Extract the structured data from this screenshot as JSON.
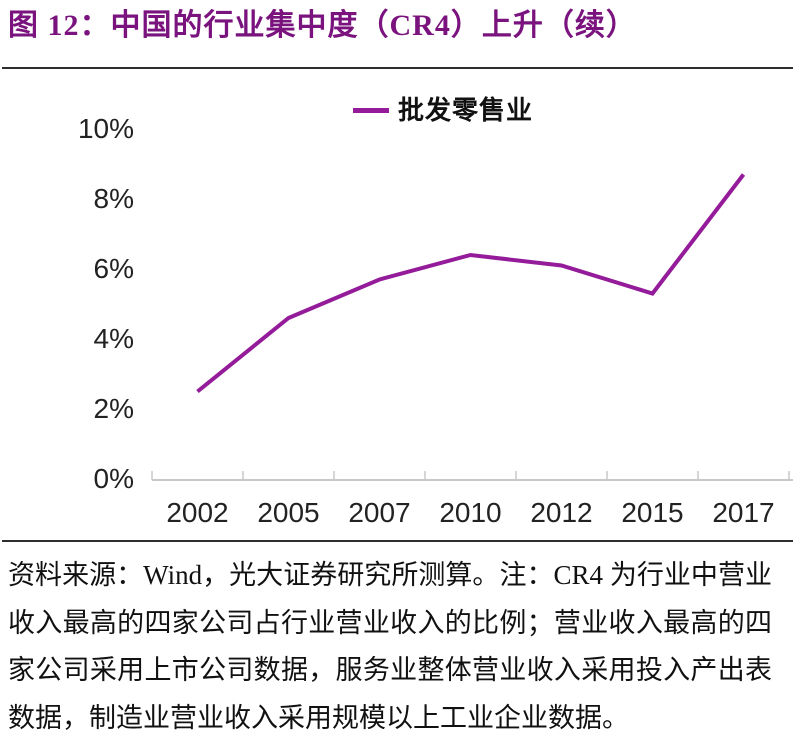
{
  "title": "图 12：中国的行业集中度（CR4）上升（续）",
  "colors": {
    "title": "#7A137E",
    "line": "#941B99",
    "axis": "#C9C9C9",
    "rule": "#2E2E2E",
    "tick_text": "#222222"
  },
  "chart_data": {
    "type": "line",
    "title": "",
    "categories": [
      "2002",
      "2005",
      "2007",
      "2010",
      "2012",
      "2015",
      "2017"
    ],
    "series": [
      {
        "name": "批发零售业",
        "color": "#941B99",
        "values": [
          2.5,
          4.6,
          5.7,
          6.4,
          6.1,
          5.3,
          8.7
        ]
      }
    ],
    "yticks": [
      "0%",
      "2%",
      "4%",
      "6%",
      "8%",
      "10%"
    ],
    "ytick_values": [
      0,
      2,
      4,
      6,
      8,
      10
    ],
    "ylim": [
      0,
      10
    ],
    "unit": "%",
    "grid": false,
    "legend_position": "top-center"
  },
  "footer": {
    "lines": [
      "资料来源：Wind，光大证券研究所测算。注：CR4 为行业中营业",
      "收入最高的四家公司占行业营业收入的比例；营业收入最高的四",
      "家公司采用上市公司数据，服务业整体营业收入采用投入产出表",
      "数据，制造业营业收入采用规模以上工业企业数据。"
    ]
  }
}
